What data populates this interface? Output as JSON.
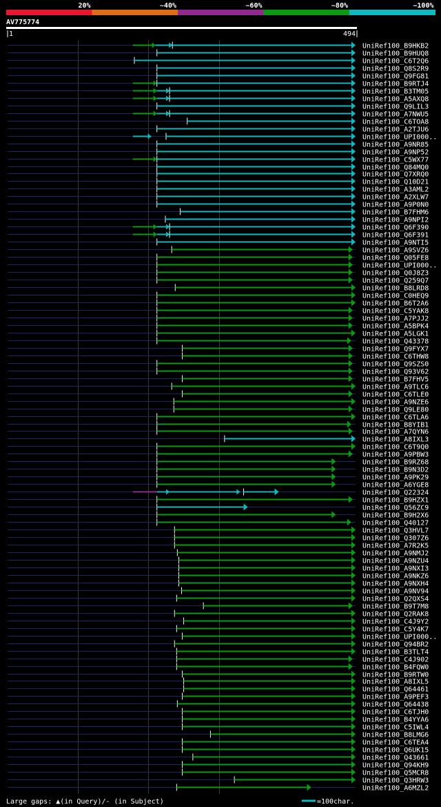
{
  "chart_data": {
    "type": "alignment-coverage",
    "query_id": "AV775774",
    "query_start": "1",
    "query_end": "494",
    "query_length": 494,
    "identity_scale": [
      {
        "label": "20%",
        "color": "#e8172e"
      },
      {
        "label": "~40%",
        "color": "#e06d18"
      },
      {
        "label": "~60%",
        "color": "#902a8e"
      },
      {
        "label": "~80%",
        "color": "#0a9a14"
      },
      {
        "label": "~100%",
        "color": "#10b8c0"
      }
    ],
    "vertical_gridlines_query": [
      100,
      200,
      300
    ],
    "scale_bar": {
      "label": "=100char.",
      "units": 100
    },
    "footer_text": "Large gaps: ▲(in Query)/- (in Subject)",
    "hits": [
      {
        "name": "UniRef100_B9HKB2",
        "class": "c",
        "start": 234,
        "end": 494,
        "segs": [
          [
            178,
            210,
            "g"
          ],
          [
            210,
            234,
            "c"
          ]
        ]
      },
      {
        "name": "UniRef100_B9HUQ8",
        "class": "c",
        "start": 212,
        "end": 494,
        "segs": []
      },
      {
        "name": "UniRef100_C6T2Q6",
        "class": "c",
        "start": 180,
        "end": 494,
        "segs": []
      },
      {
        "name": "UniRef100_Q8S2R9",
        "class": "c",
        "start": 212,
        "end": 494,
        "segs": []
      },
      {
        "name": "UniRef100_Q9FG81",
        "class": "c",
        "start": 212,
        "end": 494,
        "segs": []
      },
      {
        "name": "UniRef100_B9RTJ4",
        "class": "c",
        "start": 212,
        "end": 494,
        "segs": [
          [
            178,
            212,
            "g"
          ]
        ]
      },
      {
        "name": "UniRef100_B3TM05",
        "class": "c",
        "start": 230,
        "end": 494,
        "segs": [
          [
            178,
            212,
            "g"
          ],
          [
            212,
            230,
            "c"
          ]
        ]
      },
      {
        "name": "UniRef100_A5AXQ8",
        "class": "c",
        "start": 230,
        "end": 494,
        "segs": [
          [
            178,
            212,
            "g"
          ],
          [
            212,
            230,
            "c"
          ]
        ]
      },
      {
        "name": "UniRef100_Q9LIL3",
        "class": "c",
        "start": 212,
        "end": 494,
        "segs": []
      },
      {
        "name": "UniRef100_A7NWU5",
        "class": "c",
        "start": 230,
        "end": 494,
        "segs": [
          [
            178,
            212,
            "g"
          ],
          [
            212,
            230,
            "c"
          ]
        ]
      },
      {
        "name": "UniRef100_C6TOA8",
        "class": "c",
        "start": 255,
        "end": 494,
        "segs": []
      },
      {
        "name": "UniRef100_A2TJU6",
        "class": "c",
        "start": 212,
        "end": 494,
        "segs": []
      },
      {
        "name": "UniRef100_UPI000..",
        "class": "c",
        "start": 225,
        "end": 494,
        "segs": [
          [
            178,
            204,
            "c"
          ]
        ]
      },
      {
        "name": "UniRef100_A9NR85",
        "class": "c",
        "start": 212,
        "end": 494,
        "segs": []
      },
      {
        "name": "UniRef100_A9NP52",
        "class": "c",
        "start": 212,
        "end": 494,
        "segs": []
      },
      {
        "name": "UniRef100_C5WX77",
        "class": "c",
        "start": 212,
        "end": 494,
        "segs": [
          [
            178,
            212,
            "g"
          ]
        ]
      },
      {
        "name": "UniRef100_Q84MQ0",
        "class": "c",
        "start": 212,
        "end": 494,
        "segs": []
      },
      {
        "name": "UniRef100_Q7XRQ0",
        "class": "c",
        "start": 212,
        "end": 494,
        "segs": []
      },
      {
        "name": "UniRef100_Q10D21",
        "class": "c",
        "start": 212,
        "end": 494,
        "segs": []
      },
      {
        "name": "UniRef100_A3AML2",
        "class": "c",
        "start": 212,
        "end": 494,
        "segs": []
      },
      {
        "name": "UniRef100_A2XLW7",
        "class": "c",
        "start": 212,
        "end": 494,
        "segs": []
      },
      {
        "name": "UniRef100_A9P0N0",
        "class": "c",
        "start": 212,
        "end": 494,
        "segs": []
      },
      {
        "name": "UniRef100_B7FHM6",
        "class": "c",
        "start": 245,
        "end": 494,
        "segs": []
      },
      {
        "name": "UniRef100_A9NPI2",
        "class": "c",
        "start": 224,
        "end": 494,
        "segs": []
      },
      {
        "name": "UniRef100_Q6F390",
        "class": "c",
        "start": 230,
        "end": 494,
        "segs": [
          [
            178,
            212,
            "g"
          ],
          [
            212,
            230,
            "c"
          ]
        ]
      },
      {
        "name": "UniRef100_Q6F391",
        "class": "c",
        "start": 230,
        "end": 494,
        "segs": [
          [
            178,
            212,
            "g"
          ],
          [
            212,
            230,
            "c"
          ]
        ]
      },
      {
        "name": "UniRef100_A9NTI5",
        "class": "c",
        "start": 212,
        "end": 494,
        "segs": []
      },
      {
        "name": "UniRef100_A9SVZ6",
        "class": "g",
        "start": 233,
        "end": 490,
        "segs": []
      },
      {
        "name": "UniRef100_Q05FE8",
        "class": "g",
        "start": 212,
        "end": 490,
        "segs": []
      },
      {
        "name": "UniRef100_UPI000..",
        "class": "g",
        "start": 212,
        "end": 490,
        "segs": []
      },
      {
        "name": "UniRef100_Q0J8Z3",
        "class": "g",
        "start": 212,
        "end": 490,
        "segs": []
      },
      {
        "name": "UniRef100_Q259Q7",
        "class": "g",
        "start": 212,
        "end": 490,
        "segs": []
      },
      {
        "name": "UniRef100_B8LRD8",
        "class": "g",
        "start": 238,
        "end": 494,
        "segs": []
      },
      {
        "name": "UniRef100_C0HEQ9",
        "class": "g",
        "start": 212,
        "end": 494,
        "segs": []
      },
      {
        "name": "UniRef100_B6T2A6",
        "class": "g",
        "start": 212,
        "end": 494,
        "segs": []
      },
      {
        "name": "UniRef100_C5YAK8",
        "class": "g",
        "start": 212,
        "end": 490,
        "segs": []
      },
      {
        "name": "UniRef100_A7PJJ2",
        "class": "g",
        "start": 212,
        "end": 490,
        "segs": []
      },
      {
        "name": "UniRef100_A5BPK4",
        "class": "g",
        "start": 212,
        "end": 490,
        "segs": []
      },
      {
        "name": "UniRef100_A5LGK1",
        "class": "g",
        "start": 212,
        "end": 494,
        "segs": []
      },
      {
        "name": "UniRef100_Q43378",
        "class": "g",
        "start": 212,
        "end": 488,
        "segs": []
      },
      {
        "name": "UniRef100_Q9FYX7",
        "class": "g",
        "start": 248,
        "end": 490,
        "segs": []
      },
      {
        "name": "UniRef100_C6THW8",
        "class": "g",
        "start": 248,
        "end": 490,
        "segs": []
      },
      {
        "name": "UniRef100_Q9SZS0",
        "class": "g",
        "start": 212,
        "end": 490,
        "segs": []
      },
      {
        "name": "UniRef100_Q93V62",
        "class": "g",
        "start": 212,
        "end": 490,
        "segs": []
      },
      {
        "name": "UniRef100_B7FHV5",
        "class": "g",
        "start": 248,
        "end": 490,
        "segs": []
      },
      {
        "name": "UniRef100_A9TLC6",
        "class": "g",
        "start": 233,
        "end": 494,
        "segs": []
      },
      {
        "name": "UniRef100_C6TLE0",
        "class": "g",
        "start": 248,
        "end": 490,
        "segs": []
      },
      {
        "name": "UniRef100_A9NZE6",
        "class": "g",
        "start": 236,
        "end": 494,
        "segs": []
      },
      {
        "name": "UniRef100_Q9LE80",
        "class": "g",
        "start": 236,
        "end": 490,
        "segs": []
      },
      {
        "name": "UniRef100_C6TLA6",
        "class": "g",
        "start": 212,
        "end": 494,
        "segs": []
      },
      {
        "name": "UniRef100_B8YIB1",
        "class": "g",
        "start": 212,
        "end": 488,
        "segs": []
      },
      {
        "name": "UniRef100_A7QYN6",
        "class": "g",
        "start": 212,
        "end": 490,
        "segs": []
      },
      {
        "name": "UniRef100_A8IXL3",
        "class": "c",
        "start": 308,
        "end": 494,
        "segs": []
      },
      {
        "name": "UniRef100_C6T9Q0",
        "class": "g",
        "start": 212,
        "end": 494,
        "segs": []
      },
      {
        "name": "UniRef100_A9PBW3",
        "class": "g",
        "start": 212,
        "end": 490,
        "segs": []
      },
      {
        "name": "UniRef100_B9RZ68",
        "class": "g",
        "start": 212,
        "end": 466,
        "segs": []
      },
      {
        "name": "UniRef100_B9N3D2",
        "class": "g",
        "start": 212,
        "end": 466,
        "segs": []
      },
      {
        "name": "UniRef100_A9PK29",
        "class": "g",
        "start": 212,
        "end": 466,
        "segs": []
      },
      {
        "name": "UniRef100_A6YGE8",
        "class": "g",
        "start": 212,
        "end": 466,
        "segs": []
      },
      {
        "name": "UniRef100_Q22324",
        "class": "c",
        "start": 335,
        "end": 385,
        "segs": [
          [
            178,
            212,
            "m"
          ],
          [
            212,
            230,
            "c"
          ],
          [
            230,
            330,
            "c"
          ]
        ]
      },
      {
        "name": "UniRef100_B9HZX1",
        "class": "g",
        "start": 212,
        "end": 490,
        "segs": []
      },
      {
        "name": "UniRef100_Q56ZC9",
        "class": "c",
        "start": 212,
        "end": 341,
        "segs": []
      },
      {
        "name": "UniRef100_B9H2X6",
        "class": "g",
        "start": 212,
        "end": 466,
        "segs": []
      },
      {
        "name": "UniRef100_Q40127",
        "class": "g",
        "start": 212,
        "end": 488,
        "segs": []
      },
      {
        "name": "UniRef100_Q3HVL7",
        "class": "g",
        "start": 237,
        "end": 494,
        "segs": []
      },
      {
        "name": "UniRef100_Q307Z6",
        "class": "g",
        "start": 237,
        "end": 494,
        "segs": []
      },
      {
        "name": "UniRef100_A7R2K5",
        "class": "g",
        "start": 237,
        "end": 494,
        "segs": []
      },
      {
        "name": "UniRef100_A9NMJ2",
        "class": "g",
        "start": 241,
        "end": 494,
        "segs": []
      },
      {
        "name": "UniRef100_A9NZU4",
        "class": "g",
        "start": 243,
        "end": 494,
        "segs": []
      },
      {
        "name": "UniRef100_A9NXI3",
        "class": "g",
        "start": 243,
        "end": 494,
        "segs": []
      },
      {
        "name": "UniRef100_A9NKZ6",
        "class": "g",
        "start": 243,
        "end": 494,
        "segs": []
      },
      {
        "name": "UniRef100_A9NXH4",
        "class": "g",
        "start": 243,
        "end": 494,
        "segs": []
      },
      {
        "name": "UniRef100_A9NV94",
        "class": "g",
        "start": 247,
        "end": 494,
        "segs": []
      },
      {
        "name": "UniRef100_Q2QXS4",
        "class": "g",
        "start": 240,
        "end": 494,
        "segs": []
      },
      {
        "name": "UniRef100_B9T7M8",
        "class": "g",
        "start": 278,
        "end": 490,
        "segs": []
      },
      {
        "name": "UniRef100_Q2RAK8",
        "class": "g",
        "start": 237,
        "end": 494,
        "segs": []
      },
      {
        "name": "UniRef100_C4J9Y2",
        "class": "g",
        "start": 250,
        "end": 494,
        "segs": []
      },
      {
        "name": "UniRef100_C5Y4K7",
        "class": "g",
        "start": 240,
        "end": 494,
        "segs": []
      },
      {
        "name": "UniRef100_UPI000..",
        "class": "g",
        "start": 248,
        "end": 494,
        "segs": []
      },
      {
        "name": "UniRef100_Q94BR2",
        "class": "g",
        "start": 237,
        "end": 494,
        "segs": []
      },
      {
        "name": "UniRef100_B3TLT4",
        "class": "g",
        "start": 240,
        "end": 494,
        "segs": []
      },
      {
        "name": "UniRef100_C4J902",
        "class": "g",
        "start": 240,
        "end": 490,
        "segs": []
      },
      {
        "name": "UniRef100_B4FQW0",
        "class": "g",
        "start": 240,
        "end": 490,
        "segs": []
      },
      {
        "name": "UniRef100_B9RTW0",
        "class": "g",
        "start": 248,
        "end": 494,
        "segs": []
      },
      {
        "name": "UniRef100_A8IXL5",
        "class": "g",
        "start": 250,
        "end": 494,
        "segs": []
      },
      {
        "name": "UniRef100_Q64461",
        "class": "g",
        "start": 250,
        "end": 494,
        "segs": []
      },
      {
        "name": "UniRef100_A9PEF3",
        "class": "g",
        "start": 248,
        "end": 494,
        "segs": []
      },
      {
        "name": "UniRef100_Q64438",
        "class": "g",
        "start": 241,
        "end": 494,
        "segs": []
      },
      {
        "name": "UniRef100_C6TJH0",
        "class": "g",
        "start": 248,
        "end": 494,
        "segs": []
      },
      {
        "name": "UniRef100_B4YYA6",
        "class": "g",
        "start": 248,
        "end": 494,
        "segs": []
      },
      {
        "name": "UniRef100_C5IWL4",
        "class": "g",
        "start": 248,
        "end": 494,
        "segs": []
      },
      {
        "name": "UniRef100_B8LMG6",
        "class": "g",
        "start": 288,
        "end": 494,
        "segs": []
      },
      {
        "name": "UniRef100_C6TEA4",
        "class": "g",
        "start": 248,
        "end": 494,
        "segs": []
      },
      {
        "name": "UniRef100_Q6UK15",
        "class": "g",
        "start": 248,
        "end": 494,
        "segs": []
      },
      {
        "name": "UniRef100_Q43661",
        "class": "g",
        "start": 263,
        "end": 494,
        "segs": []
      },
      {
        "name": "UniRef100_Q94KH9",
        "class": "g",
        "start": 248,
        "end": 494,
        "segs": []
      },
      {
        "name": "UniRef100_Q5MCR8",
        "class": "g",
        "start": 248,
        "end": 494,
        "segs": []
      },
      {
        "name": "UniRef100_Q3HRW3",
        "class": "g",
        "start": 322,
        "end": 494,
        "segs": []
      },
      {
        "name": "UniRef100_A6MZL2",
        "class": "g",
        "start": 240,
        "end": 431,
        "segs": []
      }
    ]
  }
}
